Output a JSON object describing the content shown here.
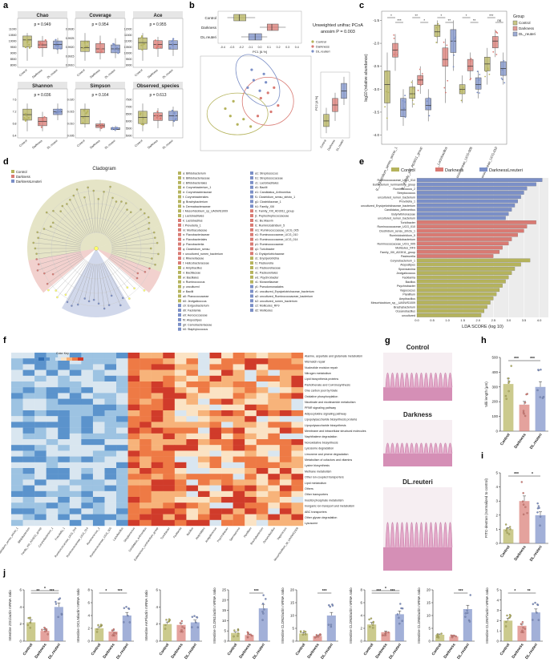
{
  "colors": {
    "control": "#b5b35c",
    "darkness": "#d97a73",
    "dl_reuteri": "#7b8fc7",
    "heat_low": "#3a79c4",
    "heat_high": "#c0392b"
  },
  "panel_labels": [
    "a",
    "b",
    "c",
    "d",
    "e",
    "f",
    "g",
    "h",
    "i",
    "j"
  ],
  "groups": [
    "Control",
    "Darkness",
    "DL.reuteri"
  ],
  "panel_a": {
    "charts": [
      {
        "title": "Chao",
        "p": "p = 0.949",
        "yticks": [
          "11000",
          "10500",
          "10000",
          "9500",
          "9000",
          "8500",
          "8000"
        ],
        "boxes": [
          [
            8200,
            9600,
            10300,
            10700,
            11000
          ],
          [
            8600,
            9500,
            9800,
            10200,
            10700
          ],
          [
            8900,
            9400,
            9850,
            10200,
            10500
          ]
        ]
      },
      {
        "title": "Coverage",
        "p": "p = 0.954",
        "yticks": [
          "0.9930",
          "0.9925",
          "0.9920",
          "0.9915",
          "0.9910"
        ],
        "boxes": [
          [
            0.9911,
            0.9918,
            0.9921,
            0.9926,
            0.9932
          ],
          [
            0.9912,
            0.9917,
            0.992,
            0.9924,
            0.993
          ],
          [
            0.9913,
            0.9917,
            0.992,
            0.9923,
            0.9928
          ]
        ]
      },
      {
        "title": "Ace",
        "p": "p = 0.955",
        "yticks": [
          "12000",
          "11500",
          "11000",
          "10500",
          "10000",
          "9500",
          "9000"
        ],
        "boxes": [
          [
            9100,
            10300,
            11000,
            11500,
            12000
          ],
          [
            9500,
            10400,
            10800,
            11200,
            11600
          ],
          [
            9600,
            10300,
            10800,
            11200,
            11500
          ]
        ]
      },
      {
        "title": "Shannon",
        "p": "p = 0.036",
        "yticks": [
          "7.6",
          "7.2",
          "6.8",
          "6.4"
        ],
        "boxes": [
          [
            6.5,
            6.9,
            7.1,
            7.3,
            7.5
          ],
          [
            6.5,
            6.7,
            6.85,
            7.0,
            7.2
          ],
          [
            6.9,
            7.1,
            7.2,
            7.3,
            7.5
          ]
        ]
      },
      {
        "title": "Simpson",
        "p": "p = 0.164",
        "yticks": [
          "0.020",
          "0.015",
          "0.010",
          "0.005"
        ],
        "boxes": [
          [
            0.006,
            0.008,
            0.012,
            0.016,
            0.019
          ],
          [
            0.004,
            0.006,
            0.007,
            0.008,
            0.01
          ],
          [
            0.004,
            0.005,
            0.005,
            0.006,
            0.007
          ]
        ]
      },
      {
        "title": "Observed_species",
        "p": "p = 0.613",
        "yticks": [
          "7500",
          "7000",
          "6500",
          "6000",
          "5500",
          "5000"
        ],
        "boxes": [
          [
            5200,
            5700,
            6100,
            6500,
            7000
          ],
          [
            5400,
            5900,
            6200,
            6400,
            6700
          ],
          [
            5500,
            5900,
            6200,
            6500,
            6800
          ]
        ]
      }
    ],
    "xlabels": [
      "Control",
      "Darkness",
      "DL.reuteri"
    ]
  },
  "panel_b": {
    "title": "Unweighted unifrac PCoA",
    "subtitle": "anosim P = 0.003",
    "legend": [
      "Control",
      "Darkness",
      "DL.reuteri"
    ],
    "pc1_label": "PC1 [6.%]",
    "pc2_label": "PC2 [4.%]",
    "xticks": [
      "-0.4",
      "-0.3",
      "-0.2",
      "-0.1",
      "0.0",
      "0.1",
      "0.2",
      "0.3",
      "0.4"
    ],
    "scatter": [
      {
        "group": 0,
        "x": -0.25,
        "y": -0.12
      },
      {
        "group": 0,
        "x": -0.18,
        "y": -0.2
      },
      {
        "group": 0,
        "x": -0.3,
        "y": -0.05
      },
      {
        "group": 0,
        "x": -0.12,
        "y": -0.15
      },
      {
        "group": 0,
        "x": -0.22,
        "y": 0.02
      },
      {
        "group": 0,
        "x": -0.05,
        "y": -0.22
      },
      {
        "group": 1,
        "x": 0.05,
        "y": 0.05
      },
      {
        "group": 1,
        "x": 0.15,
        "y": -0.08
      },
      {
        "group": 1,
        "x": 0.12,
        "y": 0.1
      },
      {
        "group": 1,
        "x": 0.22,
        "y": -0.02
      },
      {
        "group": 1,
        "x": 0.02,
        "y": -0.12
      },
      {
        "group": 1,
        "x": 0.18,
        "y": 0.15
      },
      {
        "group": 2,
        "x": -0.02,
        "y": 0.22
      },
      {
        "group": 2,
        "x": 0.08,
        "y": 0.28
      },
      {
        "group": 2,
        "x": -0.08,
        "y": 0.15
      },
      {
        "group": 2,
        "x": 0.04,
        "y": 0.12
      },
      {
        "group": 2,
        "x": 0.1,
        "y": 0.2
      },
      {
        "group": 2,
        "x": -0.04,
        "y": 0.32
      }
    ],
    "top_boxes": [
      [
        -0.35,
        -0.28,
        -0.22,
        -0.15,
        -0.05
      ],
      [
        0.0,
        0.08,
        0.13,
        0.2,
        0.28
      ],
      [
        -0.2,
        -0.12,
        -0.05,
        0.02,
        0.08
      ]
    ],
    "side_boxes": [
      [
        -0.25,
        -0.18,
        -0.12,
        -0.05,
        0.02
      ],
      [
        -0.12,
        -0.02,
        0.05,
        0.12,
        0.18
      ],
      [
        0.05,
        0.12,
        0.2,
        0.28,
        0.35
      ]
    ],
    "side_xlabels": [
      "Control",
      "Darkness",
      "DL.reuteri"
    ]
  },
  "panel_c": {
    "ylabel": "log10 (relative abundance)",
    "legend_title": "Group",
    "legend": [
      "Control",
      "Darkness",
      "DL_reuteri"
    ],
    "categories": [
      "g__Clostridium_sensu_stricto_1",
      "g__Family_XIII_AD3011_group",
      "g__Lactobacillus",
      "g__Ruminococcaceae_UCG-005",
      "g__Ruminococcaceae_UCG-010"
    ],
    "yticks": [
      "-1.5",
      "-2.0",
      "-2.5",
      "-3.0",
      "-3.5",
      "-4.0"
    ],
    "ylim": [
      -4.2,
      -1.3
    ],
    "boxes": [
      [
        [
          -3.9,
          -3.3,
          -2.9,
          -2.6,
          -2.2
        ],
        [
          -2.6,
          -2.3,
          -2.15,
          -2.0,
          -1.8
        ],
        [
          -3.8,
          -3.6,
          -3.45,
          -3.2,
          -3.0
        ]
      ],
      [
        [
          -3.4,
          -3.2,
          -3.1,
          -2.95,
          -2.8
        ],
        [
          -3.1,
          -2.9,
          -2.8,
          -2.7,
          -2.5
        ],
        [
          -3.7,
          -3.45,
          -3.35,
          -3.2,
          -3.0
        ]
      ],
      [
        [
          -2.0,
          -1.85,
          -1.75,
          -1.6,
          -1.5
        ],
        [
          -3.3,
          -2.5,
          -2.35,
          -2.1,
          -1.9
        ],
        [
          -2.6,
          -2.2,
          -1.95,
          -1.7,
          -1.5
        ]
      ],
      [
        [
          -3.3,
          -3.1,
          -3.0,
          -2.9,
          -2.7
        ],
        [
          -2.8,
          -2.6,
          -2.5,
          -2.35,
          -2.2
        ],
        [
          -3.2,
          -3.0,
          -2.9,
          -2.75,
          -2.6
        ]
      ],
      [
        [
          -2.9,
          -2.6,
          -2.45,
          -2.3,
          -2.1
        ],
        [
          -2.3,
          -2.1,
          -1.95,
          -1.85,
          -1.7
        ],
        [
          -2.9,
          -2.7,
          -2.55,
          -2.4,
          -2.2
        ]
      ]
    ],
    "sig": [
      "*",
      "***",
      "**",
      "*",
      "*",
      "**",
      "*",
      "**",
      "***",
      "ns",
      "**"
    ]
  },
  "panel_d": {
    "title": "Cladogram",
    "legend": [
      "Control",
      "Darkness",
      "DarknessLreuteri"
    ],
    "list_left": [
      "a: Bifidobacterium",
      "b: Bifidobacteriaceae",
      "c: Bifidobacteriales",
      "d: Corynebacterium_1",
      "e: Corynebacteriaceae",
      "f: Corynebacteriales",
      "g: Brachybacterium",
      "h: Dermabacteraceae",
      "i: Mesorhizobium_sp_UASWS1009",
      "j: Lactobacillales",
      "k: Lactobacillus",
      "l: Prevotella_1",
      "m: Muribaculaceae",
      "n: Flavobacteriaceae",
      "o: Flavobacteriales",
      "p: Flavobacteriia",
      "q: Clostridium_sensu",
      "r: uncultured_rumen_bacterium",
      "s: Rikenellaceae",
      "t: Helicobacteraceae",
      "u: Ampibacillus",
      "v: Bacillaceae",
      "w: Bacillales",
      "x: Ruminococcus",
      "y: uncultured",
      "z: Bacilli",
      "a0: Planococcaceae",
      "b0: Jeotgalicoccus",
      "c0: Exiguobacterium",
      "d0: Facklamia",
      "e0: Aerococcaceae",
      "f0: Atopostipes",
      "g0: Carnobacteriaceae",
      "h0: Staphylococcus"
    ],
    "list_right": [
      "a1: Streptococcus",
      "b1: Streptococcaceae",
      "c1: Lactobacillales",
      "d1: Bacilli",
      "e1: Candidatus_Arthromitus",
      "f1: Clostridium_sensu_stricto_1",
      "g1: Clostridiaceae_1",
      "h1: Family_XIII",
      "i1: Family_XIII_AD3011_group",
      "j1: Peptostreptococcaceae",
      "k1: Bu.Mauvin",
      "l1: Ruminiclostridium_5",
      "m1: Ruminococcaceae_UCG_005",
      "n1: Ruminococcaceae_UCG_010",
      "o1: Ruminococcaceae_UCG_014",
      "p1: Ruminococcaceae",
      "q1: Turicibacter",
      "r1: Erysipelotrichaceae",
      "s1: Erysipelotrichia",
      "t1: Pasteurella",
      "u1: Pasteurellaceae",
      "v1: Pasteurellales",
      "w1: Psychrobacter",
      "x1: Moraxellaceae",
      "y1: Pseudomonadales",
      "z1: uncultured_Erysipelotrichaceae_bacterium",
      "a2: uncultured_Ruminococcaceae_bacterium",
      "b2: uncultured_rumen_bacterium",
      "c2: Mollicutes_RF9",
      "d2: Mollicutes"
    ]
  },
  "panel_e": {
    "legend": [
      "Control",
      "Darkness",
      "DarknessLreuteri"
    ],
    "xlabel": "LDA SCORE (log 10)",
    "xticks": [
      "0.0",
      "0.5",
      "1.0",
      "1.5",
      "2.0",
      "2.5",
      "3.0",
      "3.5",
      "4.0"
    ],
    "bars": [
      {
        "label": "Ruminococcaceae_UCG_014",
        "v": 4.1,
        "g": 2
      },
      {
        "label": "Eubacterium_ruminantium_group",
        "v": 3.9,
        "g": 2
      },
      {
        "label": "Ruminococcus_2",
        "v": 3.6,
        "g": 2
      },
      {
        "label": "Streptococcus",
        "v": 3.5,
        "g": 2
      },
      {
        "label": "uncultured_rumen_bacterium",
        "v": 3.4,
        "g": 2
      },
      {
        "label": "Prevotella_1",
        "v": 3.3,
        "g": 2
      },
      {
        "label": "uncultured_Erysipelotrichaceae_bacterium",
        "v": 3.2,
        "g": 2
      },
      {
        "label": "Candidatus_Arthromitus",
        "v": 3.1,
        "g": 2
      },
      {
        "label": "Butyrivibrionaceae",
        "v": 3.0,
        "g": 2
      },
      {
        "label": "uncultured_rumen_bacterium",
        "v": 2.9,
        "g": 2
      },
      {
        "label": "Turicibacter",
        "v": 3.9,
        "g": 1
      },
      {
        "label": "Ruminococcaceae_UCG_010",
        "v": 3.6,
        "g": 1
      },
      {
        "label": "Clostridium_sensu_stricto_1",
        "v": 3.5,
        "g": 1
      },
      {
        "label": "Ruminiclostridium_5",
        "v": 3.3,
        "g": 1
      },
      {
        "label": "Bifidobacterium",
        "v": 3.1,
        "g": 1
      },
      {
        "label": "Ruminococcaceae_UCG_005",
        "v": 3.0,
        "g": 1
      },
      {
        "label": "Mollicutes_RF9",
        "v": 2.8,
        "g": 1
      },
      {
        "label": "Family_XIII_AD3011_group",
        "v": 2.7,
        "g": 1
      },
      {
        "label": "Pasteurella",
        "v": 2.5,
        "g": 1
      },
      {
        "label": "Corynebacterium_1",
        "v": 3.7,
        "g": 0
      },
      {
        "label": "Atopostipes",
        "v": 3.4,
        "g": 0
      },
      {
        "label": "Sporosarcina",
        "v": 3.2,
        "g": 0
      },
      {
        "label": "Jeotgalicoccus",
        "v": 3.1,
        "g": 0
      },
      {
        "label": "Facklamia",
        "v": 3.0,
        "g": 0
      },
      {
        "label": "Bacillus",
        "v": 2.9,
        "g": 0
      },
      {
        "label": "Psychrobacter",
        "v": 2.8,
        "g": 0
      },
      {
        "label": "Vagococcus",
        "v": 2.7,
        "g": 0
      },
      {
        "label": "Planifilum",
        "v": 2.6,
        "g": 0
      },
      {
        "label": "Ampibacillus",
        "v": 2.5,
        "g": 0
      },
      {
        "label": "Mesorhizobium_sp__UASWS1009",
        "v": 2.4,
        "g": 0
      },
      {
        "label": "Brachybacterium",
        "v": 2.3,
        "g": 0
      },
      {
        "label": "Oceanobacillus",
        "v": 2.2,
        "g": 0
      },
      {
        "label": "uncultured",
        "v": 2.1,
        "g": 0
      }
    ]
  },
  "panel_f": {
    "legend_title": "Color Key",
    "pathways": [
      "Alanine, aspartate and glutamate metabolism",
      "Mismatch repair",
      "Nucleotide excision repair",
      "Nitrogen metabolism",
      "Lipid biosynthesis proteins",
      "Pantothenate and CoA biosynthesis",
      "One carbon pool by folate",
      "Oxidative phosphorylation",
      "Nicotinate and nicotinamide metabolism",
      "PPAR signaling pathway",
      "Adipocytokine signaling pathway",
      "Lipopolysaccharide biosynthesis proteins",
      "Lipopolysaccharide biosynthesis",
      "Membrane and intracellular structural molecules",
      "Naphthalene degradation",
      "Nonoxidative biosynthesis",
      "Lysosome degradation",
      "Limonene and pinene degradation",
      "Metabolism of cofactors and vitamins",
      "Lysine biosynthesis",
      "Methane metabolism",
      "Other ion-coupled transporters",
      "Lipid metabolism",
      "Others",
      "Other transporters",
      "Inositol phosphate metabolism",
      "Inorganic ion transport and metabolism",
      "ABC transporters",
      "Other glycan degradation",
      "Lysosome"
    ],
    "genera": [
      "Clostridium_sensu_stricto_1",
      "Bifidobacterium",
      "Family_XIII_AD3011_group",
      "Corynebacterium_1",
      "Prevotella_1",
      "Ruminococcaceae_UCG_010",
      "Ruminococcaceae_UCG_014",
      "Ruminococcus_2",
      "Ruminococcaceae_UCG_005",
      "Lactobacillus",
      "Streptococcus",
      "Candidatus_Arthromitus",
      "Eubacterium_ruminantium_group",
      "Turicibacter",
      "Facklamia",
      "Bacillus",
      "Atopostipes",
      "Jeotgalicoccus",
      "Psychrobacter",
      "Sporosarcina",
      "Planifilum",
      "Brachybacterium",
      "Oceanobacillus",
      "Vagococcus",
      "Mesorhizobium_sp_UASWS1009"
    ]
  },
  "panel_g": {
    "labels": [
      "Control",
      "Darkness",
      "DL.reuteri"
    ]
  },
  "panel_h": {
    "ylabel": "Villi length (μm)",
    "yticks": [
      "500",
      "400",
      "300",
      "200",
      "100",
      "0"
    ],
    "ymax": 500,
    "values": [
      320,
      180,
      300
    ],
    "sig": [
      "***",
      "***"
    ],
    "xlabels": [
      "Control",
      "Darkness",
      "DL.reuteri"
    ]
  },
  "panel_i": {
    "ylabel": "FITC-dextran (normalized to control)",
    "yticks": [
      "5",
      "4",
      "3",
      "2",
      "1",
      "0"
    ],
    "ymax": 5,
    "values": [
      1.0,
      3.0,
      2.0
    ],
    "sig": [
      "***",
      "*"
    ],
    "xlabels": [
      "Control",
      "Darkness",
      "DL.reuteri"
    ]
  },
  "panel_j": {
    "charts": [
      {
        "ylabel": "Intestine ZO1/actin mRNA ratio",
        "yticks": [
          "6",
          "4",
          "2",
          "0"
        ],
        "ymax": 6,
        "values": [
          2.2,
          1.2,
          4.0
        ],
        "sig": [
          "**",
          "*",
          "***"
        ]
      },
      {
        "ylabel": "Intestine OCLN/actin mRNA ratio",
        "yticks": [
          "8",
          "6",
          "4",
          "2",
          "0"
        ],
        "ymax": 8,
        "values": [
          2.0,
          1.5,
          4.0
        ],
        "sig": [
          "*",
          "***"
        ]
      },
      {
        "ylabel": "Intestine AKP/actin mRNA ratio",
        "yticks": [
          "6",
          "4",
          "2",
          "0"
        ],
        "ymax": 6,
        "values": [
          2.0,
          1.9,
          2.2
        ],
        "sig": []
      },
      {
        "ylabel": "Intestine CLDN1/actin mRNA ratio",
        "yticks": [
          "25",
          "20",
          "15",
          "10",
          "5",
          "0"
        ],
        "ymax": 25,
        "values": [
          4.0,
          3.0,
          16.0
        ],
        "sig": [
          "***"
        ]
      },
      {
        "ylabel": "Intestine CLDN2/actin mRNA ratio",
        "yticks": [
          "20",
          "15",
          "10",
          "5",
          "0"
        ],
        "ymax": 20,
        "values": [
          3.0,
          2.0,
          10.0
        ],
        "sig": [
          "***"
        ]
      },
      {
        "ylabel": "Intestine CLDN3/actin mRNA ratio",
        "yticks": [
          "8",
          "6",
          "4",
          "2",
          "0"
        ],
        "ymax": 8,
        "values": [
          2.6,
          1.4,
          4.2
        ],
        "sig": [
          "***",
          "*",
          "***"
        ]
      },
      {
        "ylabel": "Intestine CLDN5/actin mRNA ratio",
        "yticks": [
          "20",
          "15",
          "10",
          "5",
          "0"
        ],
        "ymax": 20,
        "values": [
          2.5,
          1.8,
          12.5
        ],
        "sig": [
          "***"
        ]
      },
      {
        "ylabel": "Intestine CLDN7/actin mRNA ratio",
        "yticks": [
          "5",
          "4",
          "3",
          "2",
          "1",
          "0"
        ],
        "ymax": 5,
        "values": [
          2.0,
          1.5,
          2.8
        ],
        "sig": [
          "*",
          "**"
        ]
      }
    ],
    "xlabels": [
      "Control",
      "Darkness",
      "DL.reuteri"
    ]
  }
}
